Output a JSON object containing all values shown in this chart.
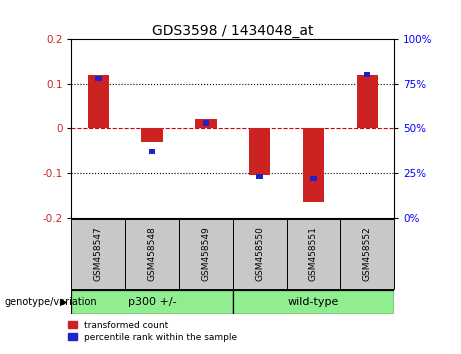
{
  "title": "GDS3598 / 1434048_at",
  "samples": [
    "GSM458547",
    "GSM458548",
    "GSM458549",
    "GSM458550",
    "GSM458551",
    "GSM458552"
  ],
  "red_values": [
    0.12,
    -0.03,
    0.02,
    -0.105,
    -0.165,
    0.12
  ],
  "blue_values": [
    0.78,
    0.37,
    0.53,
    0.23,
    0.22,
    0.8
  ],
  "ylim_left": [
    -0.2,
    0.2
  ],
  "ylim_right": [
    0,
    100
  ],
  "yticks_left": [
    -0.2,
    -0.1,
    0.0,
    0.1,
    0.2
  ],
  "yticks_right": [
    0,
    25,
    50,
    75,
    100
  ],
  "red_color": "#CC2222",
  "blue_color": "#2222CC",
  "zero_line_color": "#CC0000",
  "red_bar_width": 0.4,
  "blue_square_size": 0.12,
  "legend_red": "transformed count",
  "legend_blue": "percentile rank within the sample",
  "genotype_label": "genotype/variation",
  "group1_label": "p300 +/-",
  "group2_label": "wild-type",
  "group1_color": "#90EE90",
  "group2_color": "#90EE90",
  "plot_bg_color": "#FFFFFF",
  "tick_bg_color": "#C8C8C8",
  "title_fontsize": 10
}
